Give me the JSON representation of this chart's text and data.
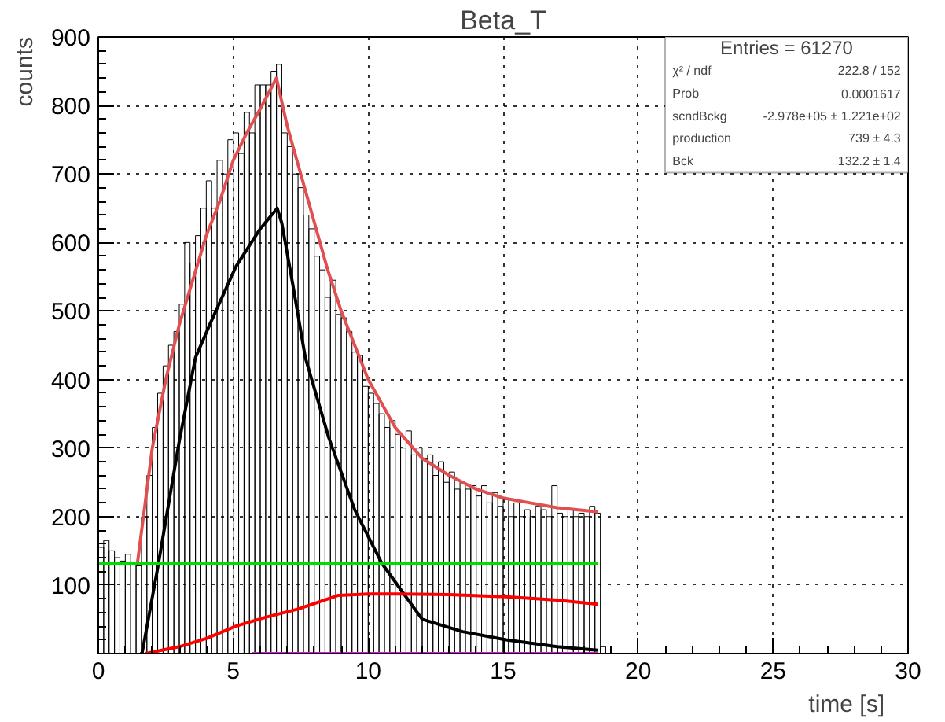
{
  "chart_data": {
    "type": "histogram",
    "title": "Beta_T",
    "xlabel": "time [s]",
    "ylabel": "counts",
    "bins": [
      0,
      0.2,
      0.4,
      0.6,
      0.8,
      1.0,
      1.2,
      1.4,
      1.6,
      1.8,
      2.0,
      2.2,
      2.4,
      2.6,
      2.8,
      3.0,
      3.2,
      3.4,
      3.6,
      3.8,
      4.0,
      4.2,
      4.4,
      4.6,
      4.8,
      5.0,
      5.2,
      5.4,
      5.6,
      5.8,
      6.0,
      6.2,
      6.4,
      6.6,
      6.8,
      7.0,
      7.2,
      7.4,
      7.6,
      7.8,
      8.0,
      8.2,
      8.4,
      8.6,
      8.8,
      9.0,
      9.2,
      9.4,
      9.6,
      9.8,
      10.0,
      10.2,
      10.4,
      10.6,
      10.8,
      11.0,
      11.2,
      11.4,
      11.6,
      11.8,
      12.0,
      12.2,
      12.4,
      12.6,
      12.8,
      13.0,
      13.2,
      13.4,
      13.6,
      13.8,
      14.0,
      14.2,
      14.4,
      14.6,
      14.8,
      15.0,
      15.2,
      15.4,
      15.6,
      15.8,
      16.0,
      16.2,
      16.4,
      16.6,
      16.8,
      17.0,
      17.2,
      17.4,
      17.6,
      17.8,
      18.0,
      18.2,
      18.4,
      18.6,
      18.8
    ],
    "values": [
      155,
      165,
      150,
      140,
      135,
      145,
      130,
      128,
      200,
      260,
      330,
      380,
      420,
      450,
      470,
      510,
      600,
      570,
      610,
      650,
      690,
      650,
      720,
      700,
      750,
      760,
      730,
      790,
      760,
      830,
      830,
      830,
      850,
      860,
      760,
      740,
      700,
      680,
      640,
      620,
      580,
      560,
      520,
      545,
      495,
      490,
      470,
      440,
      435,
      390,
      380,
      365,
      350,
      330,
      340,
      320,
      300,
      325,
      290,
      300,
      285,
      290,
      260,
      280,
      250,
      265,
      240,
      250,
      240,
      245,
      230,
      245,
      220,
      235,
      215,
      225,
      200,
      220,
      200,
      210,
      200,
      215,
      210,
      200,
      245,
      205,
      200,
      210,
      200,
      205,
      200,
      215,
      205,
      10
    ],
    "color": "#000000",
    "series": [
      {
        "type": "line",
        "color": "#e05050",
        "x": [
          1.45,
          2.0,
          2.5,
          3.0,
          3.5,
          4.0,
          4.5,
          5.0,
          5.5,
          6.0,
          6.6,
          7.0,
          7.5,
          8.0,
          8.5,
          9.0,
          9.5,
          10.0,
          11.0,
          12.0,
          13.0,
          14.0,
          15.0,
          16.0,
          17.0,
          18.5
        ],
        "values": [
          132,
          300,
          400,
          480,
          545,
          610,
          660,
          720,
          760,
          795,
          840,
          770,
          700,
          630,
          560,
          500,
          450,
          400,
          330,
          285,
          260,
          240,
          227,
          220,
          213,
          207
        ]
      },
      {
        "type": "line",
        "color": "#000000",
        "x": [
          1.55,
          1.62,
          2.2,
          3.0,
          3.6,
          4.15,
          5.1,
          6.0,
          6.63,
          6.8,
          7.2,
          7.67,
          8.54,
          9.5,
          10.5,
          12.0,
          13.5,
          15.1,
          17.0,
          18.5
        ],
        "values": [
          0,
          0,
          125,
          310,
          432,
          482,
          565,
          620,
          650,
          628,
          540,
          432,
          315,
          210,
          132,
          50,
          32,
          20,
          10,
          5
        ]
      },
      {
        "type": "line",
        "color": "#00dd00",
        "x": [
          0,
          18.5
        ],
        "values": [
          132,
          132
        ]
      },
      {
        "type": "line",
        "color": "#ff0000",
        "x": [
          1.75,
          3.0,
          4.0,
          5.1,
          6.2,
          7.4,
          8.9,
          10.0,
          11.25,
          13.0,
          15.1,
          17.0,
          18.5
        ],
        "values": [
          0,
          10,
          22,
          40,
          53,
          65,
          85,
          87,
          87,
          86,
          83,
          78,
          72
        ]
      },
      {
        "type": "line",
        "color": "#ff00ff",
        "x": [
          5.7,
          18.5
        ],
        "values": [
          0,
          0
        ]
      }
    ],
    "xlim": [
      0,
      30
    ],
    "ylim": [
      0,
      900
    ],
    "xticks": [
      {
        "value": 0,
        "label": "0"
      },
      5,
      10,
      15,
      20,
      25,
      30
    ],
    "yticks": [
      {
        "value": 0,
        "label": null
      },
      100,
      200,
      300,
      400,
      500,
      600,
      700,
      800,
      900
    ],
    "grid": true,
    "annotations": [
      "Entries = 61270",
      "χ² / ndf",
      "222.8 / 152",
      "Prob",
      "0.0001617",
      "scndBckg",
      "-2.978e+05 ± 1.221e+02",
      "production",
      "739 ± 4.3",
      "Bck",
      "132.2 ± 1.4"
    ]
  }
}
